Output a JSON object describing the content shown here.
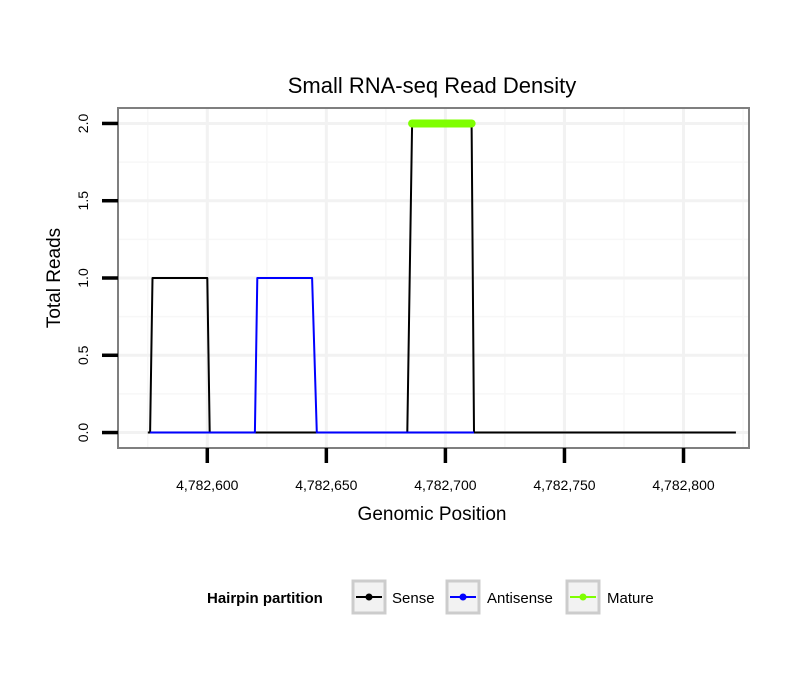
{
  "chart_data": {
    "type": "line",
    "title": "Small RNA-seq Read Density",
    "xlabel": "Genomic Position",
    "ylabel": "Total Reads",
    "xlim": [
      4782562.5,
      4782827.5
    ],
    "ylim": [
      -0.1,
      2.1
    ],
    "x_ticks": [
      4782600,
      4782650,
      4782700,
      4782750,
      4782800
    ],
    "x_tick_labels": [
      "4,782,600",
      "4,782,650",
      "4,782,700",
      "4,782,750",
      "4,782,800"
    ],
    "y_ticks": [
      0.0,
      0.5,
      1.0,
      1.5,
      2.0
    ],
    "y_tick_labels": [
      "0.0",
      "0.5",
      "1.0",
      "1.5",
      "2.0"
    ],
    "grid": true,
    "legend": {
      "title": "Hairpin partition",
      "position": "bottom",
      "entries": [
        "Sense",
        "Antisense",
        "Mature"
      ]
    },
    "series": [
      {
        "name": "Sense",
        "color": "#000000",
        "x": [
          4782575,
          4782576,
          4782577,
          4782599,
          4782600,
          4782601,
          4782819,
          4782820,
          4782821,
          4782822
        ],
        "y": [
          0,
          0,
          1,
          1,
          1,
          0,
          0,
          0,
          0,
          0
        ]
      },
      {
        "name": "Sense",
        "color": "#000000",
        "x": [
          4782683,
          4782684,
          4782686,
          4782710,
          4782711,
          4782712
        ],
        "y": [
          0,
          0,
          2,
          2,
          2,
          0
        ]
      },
      {
        "name": "Antisense",
        "color": "#0000ff",
        "x": [
          4782576,
          4782600,
          4782618,
          4782620,
          4782621,
          4782643,
          4782644,
          4782646,
          4782685,
          4782712
        ],
        "y": [
          0,
          0,
          0,
          0,
          1,
          1,
          1,
          0,
          0,
          0
        ]
      },
      {
        "name": "Mature",
        "color": "#7fff00",
        "x": [
          4782686,
          4782711
        ],
        "y": [
          2,
          2
        ]
      }
    ]
  }
}
